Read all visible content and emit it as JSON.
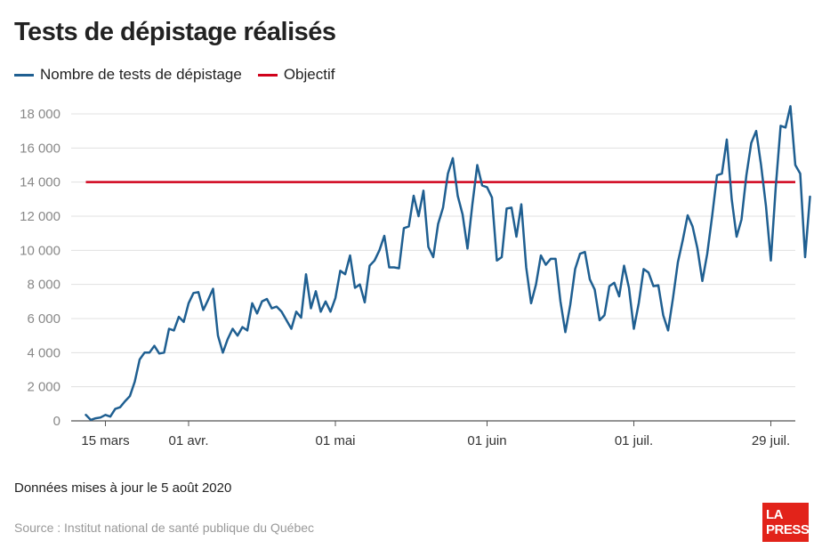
{
  "header": {
    "title": "Tests de dépistage réalisés"
  },
  "footer": {
    "note": "Données mises à jour le 5 août 2020",
    "source": "Source : Institut national de santé publique du Québec"
  },
  "logo": {
    "line1": "LA",
    "line2": "PRESSE"
  },
  "colors": {
    "series": "#1f5f91",
    "objective": "#d0021b",
    "grid": "#e0e0e0"
  },
  "chart_data": {
    "type": "line",
    "ylim": [
      0,
      18000
    ],
    "yticks": [
      0,
      2000,
      4000,
      6000,
      8000,
      10000,
      12000,
      14000,
      16000,
      18000
    ],
    "ytick_labels": [
      "0",
      "2 000",
      "4 000",
      "6 000",
      "8 000",
      "10 000",
      "12 000",
      "14 000",
      "16 000",
      "18 000"
    ],
    "x_start": "2020-03-08",
    "x_end": "2020-08-03",
    "xticks": [
      {
        "date": "2020-03-15",
        "label": "15 mars"
      },
      {
        "date": "2020-04-01",
        "label": "01 avr."
      },
      {
        "date": "2020-05-01",
        "label": "01 mai"
      },
      {
        "date": "2020-06-01",
        "label": "01 juin"
      },
      {
        "date": "2020-07-01",
        "label": "01 juil."
      },
      {
        "date": "2020-07-29",
        "label": "29 juil."
      }
    ],
    "series": [
      {
        "name": "Nombre de tests de dépistage",
        "start_date": "2020-03-11",
        "values": [
          350,
          60,
          150,
          200,
          350,
          250,
          700,
          800,
          1150,
          1450,
          2300,
          3600,
          4000,
          4000,
          4400,
          3950,
          4000,
          5400,
          5300,
          6100,
          5800,
          6900,
          7500,
          7550,
          6500,
          7100,
          7750,
          5000,
          4000,
          4800,
          5400,
          5000,
          5500,
          5300,
          6900,
          6300,
          7000,
          7150,
          6600,
          6700,
          6400,
          5900,
          5400,
          6400,
          6050,
          8600,
          6600,
          7600,
          6400,
          7000,
          6400,
          7200,
          8800,
          8600,
          9700,
          7800,
          8000,
          6950,
          9100,
          9400,
          10000,
          10850,
          9000,
          9000,
          8950,
          11300,
          11400,
          13200,
          12000,
          13500,
          10200,
          9600,
          11550,
          12500,
          14500,
          15400,
          13200,
          12100,
          10100,
          12700,
          15000,
          13800,
          13700,
          13100,
          9400,
          9600,
          12450,
          12500,
          10800,
          12700,
          9000,
          6900,
          8000,
          9700,
          9150,
          9500,
          9500,
          7000,
          5200,
          6800,
          8900,
          9800,
          9900,
          8300,
          7700,
          5900,
          6200,
          7900,
          8100,
          7300,
          9100,
          7800,
          5400,
          6900,
          8900,
          8700,
          7900,
          7950,
          6200,
          5300,
          7200,
          9300,
          10600,
          12050,
          11400,
          10100,
          8200,
          9800,
          12000,
          14400,
          14500,
          16500,
          13000,
          10800,
          11800,
          14400,
          16300,
          17000,
          15000,
          12600,
          9400,
          13700,
          17300,
          17200,
          18450,
          15000,
          14500,
          9600,
          13150
        ]
      },
      {
        "name": "Objectif",
        "value": 14000,
        "start_date": "2020-03-11",
        "end_date": "2020-08-03"
      }
    ]
  }
}
